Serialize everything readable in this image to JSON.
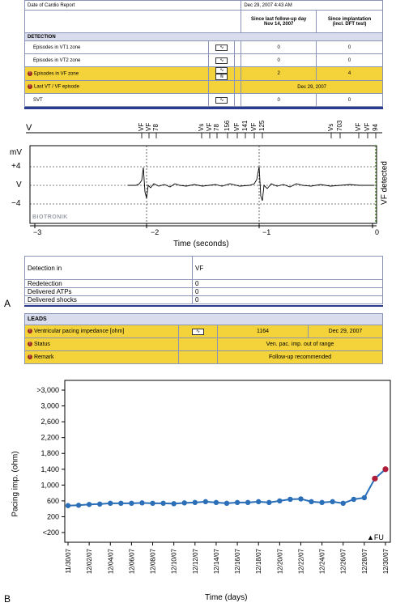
{
  "report": {
    "date_label": "Date of Cardio Report",
    "date_value": "Dec 29, 2007 4:43 AM",
    "col1_header_line1": "Since last follow-up day",
    "col1_header_line2": "Nov 14, 2007",
    "col2_header_line1": "Since implantation",
    "col2_header_line2": "(incl. DFT test)",
    "section": "DETECTION",
    "rows": [
      {
        "label": "Episodes in VT1 zone",
        "v1": "0",
        "v2": "0",
        "alert": false,
        "icons": 1
      },
      {
        "label": "Episodes in VT2 zone",
        "v1": "0",
        "v2": "0",
        "alert": false,
        "icons": 1
      },
      {
        "label": "Episodes in VF zone",
        "v1": "2",
        "v2": "4",
        "alert": true,
        "icons": 2
      },
      {
        "label": "Last VT / VF episode",
        "v1": "Dec 29, 2007",
        "v2": "",
        "alert": true,
        "icons": 0
      },
      {
        "label": "SVT",
        "v1": "0",
        "v2": "0",
        "alert": false,
        "icons": 1
      }
    ]
  },
  "ecg": {
    "channel": "V",
    "markers": [
      "VF",
      "VF",
      "78",
      "Vs",
      "VF",
      "78",
      "156",
      "VF",
      "141",
      "VF",
      "125",
      "Vs",
      "703",
      "VF",
      "VF",
      "94"
    ],
    "mv_label": "mV",
    "y_labels": [
      "+4",
      "V",
      "−4"
    ],
    "detected_label": "VF detected",
    "brand": "BIOTRONIK",
    "x_ticks": [
      "−3",
      "−2",
      "−1",
      "0"
    ],
    "x_title": "Time (seconds)"
  },
  "detection_table": [
    {
      "label": "Detection in",
      "value": "VF"
    },
    {
      "label": "Redetection",
      "value": "0"
    },
    {
      "label": "Delivered ATPs",
      "value": "0"
    },
    {
      "label": "Delivered shocks",
      "value": "0"
    }
  ],
  "panel_a": "A",
  "leads": {
    "section": "LEADS",
    "rows": [
      {
        "label": "Ventricular pacing impedance [ohm]",
        "value": "1164",
        "date": "Dec 29, 2007"
      },
      {
        "label": "Status",
        "value": "Ven. pac. imp. out of range"
      },
      {
        "label": "Remark",
        "value": "Follow-up recommended"
      }
    ]
  },
  "panel_b": "B",
  "chart_data": {
    "type": "line",
    "ylabel": "Pacing imp. (ohm)",
    "xlabel": "Time (days)",
    "y_tick_labels": [
      ">3,000",
      "3,000",
      "2,600",
      "2,200",
      "1,800",
      "1,400",
      "1,000",
      "600",
      "200",
      "<200"
    ],
    "ylim": [
      200,
      3000
    ],
    "x_tick_labels": [
      "11/30/07",
      "12/02/07",
      "12/04/07",
      "12/06/07",
      "12/08/07",
      "12/10/07",
      "12/12/07",
      "12/14/07",
      "12/16/07",
      "12/18/07",
      "12/20/07",
      "12/22/07",
      "12/24/07",
      "12/26/07",
      "12/28/07",
      "12/30/07"
    ],
    "annotation": "FU",
    "series": [
      {
        "x": [
          "11/30/07",
          "12/01/07",
          "12/02/07",
          "12/03/07",
          "12/04/07",
          "12/05/07",
          "12/06/07",
          "12/07/07",
          "12/08/07",
          "12/09/07",
          "12/10/07",
          "12/11/07",
          "12/12/07",
          "12/13/07",
          "12/14/07",
          "12/15/07",
          "12/16/07",
          "12/17/07",
          "12/18/07",
          "12/19/07",
          "12/20/07",
          "12/21/07",
          "12/22/07",
          "12/23/07",
          "12/24/07",
          "12/25/07",
          "12/26/07",
          "12/27/07",
          "12/28/07",
          "12/29/07",
          "12/30/07"
        ],
        "values": [
          480,
          490,
          510,
          520,
          540,
          540,
          540,
          550,
          540,
          540,
          530,
          550,
          560,
          580,
          560,
          540,
          560,
          560,
          580,
          560,
          600,
          640,
          650,
          580,
          560,
          580,
          540,
          640,
          680,
          1164,
          1400
        ],
        "color": "#2a6fb8",
        "out_of_range_color": "#b01d3a",
        "out_of_range_from": 29
      }
    ]
  }
}
